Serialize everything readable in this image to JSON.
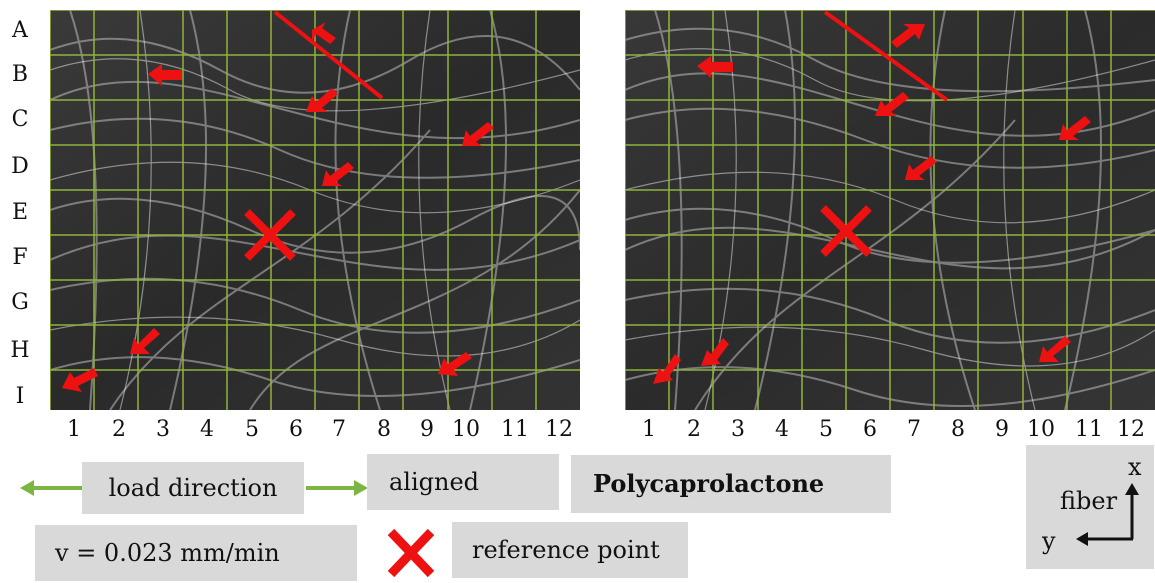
{
  "row_labels": [
    "A",
    "B",
    "C",
    "D",
    "E",
    "F",
    "G",
    "H",
    "I"
  ],
  "col_labels": [
    "1",
    "2",
    "3",
    "4",
    "5",
    "6",
    "7",
    "8",
    "9",
    "10",
    "11",
    "12"
  ],
  "legend": {
    "load_direction": "load direction",
    "aligned": "aligned",
    "material": "Polycaprolactone",
    "velocity": "v = 0.023 mm/min",
    "reference_point": "reference point"
  },
  "axes": {
    "x": "x",
    "y": "y",
    "fiber": "fiber"
  },
  "colors": {
    "grid": "#8fb33a",
    "arrow": "#ee1111",
    "legend_arrow": "#7db543",
    "box": "#d9d9d9"
  }
}
